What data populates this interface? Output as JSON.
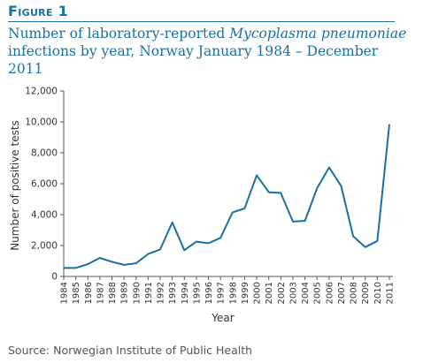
{
  "figure": {
    "label": "Figure 1",
    "title_part1": "Number of laboratory-reported ",
    "title_italic": "Mycoplasma pneumoniae",
    "title_part2": " infections by year, Norway January 1984 – December 2011",
    "source": "Source: Norwegian Institute of Public Health"
  },
  "colors": {
    "accent": "#1a6fa3",
    "line": "#1a6fa3",
    "axis": "#555555",
    "text": "#333333"
  },
  "chart_data": {
    "type": "line",
    "title": "Number of laboratory-reported Mycoplasma pneumoniae infections by year, Norway January 1984 – December 2011",
    "xlabel": "Year",
    "ylabel": "Number of positive tests",
    "ylim": [
      0,
      12000
    ],
    "yticks": [
      0,
      2000,
      4000,
      6000,
      8000,
      10000,
      12000
    ],
    "ytick_labels": [
      "0",
      "2,000",
      "4,000",
      "6,000",
      "8,000",
      "10,000",
      "12,000"
    ],
    "grid": false,
    "x": [
      "1984",
      "1985",
      "1986",
      "1987",
      "1988",
      "1989",
      "1990",
      "1991",
      "1992",
      "1993",
      "1994",
      "1995",
      "1996",
      "1997",
      "1998",
      "1999",
      "2000",
      "2001",
      "2002",
      "2003",
      "2004",
      "2005",
      "2006",
      "2007",
      "2008",
      "2009",
      "2010",
      "2011"
    ],
    "series": [
      {
        "values": [
          550,
          550,
          800,
          1200,
          950,
          750,
          850,
          1450,
          1750,
          3500,
          1700,
          2250,
          2150,
          2500,
          4150,
          4400,
          6550,
          5450,
          5400,
          3550,
          3600,
          5700,
          7050,
          5850,
          2600,
          1900,
          2300,
          9850
        ]
      }
    ]
  }
}
